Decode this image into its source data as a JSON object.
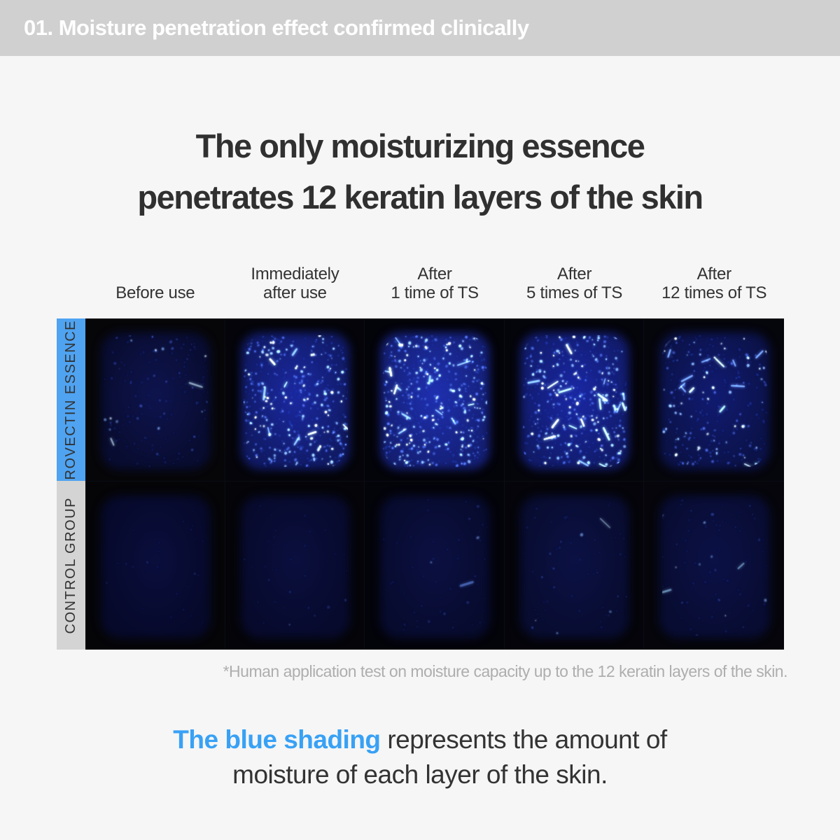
{
  "colors": {
    "page_bg": "#f6f6f6",
    "topbar_bg": "#d0d0d0",
    "topbar_text": "#ffffff",
    "headline_text": "#303030",
    "rovectin_strip": "#4fa3f1",
    "control_strip": "#d4d4d4",
    "highlight_blue": "#38a1f5",
    "footnote_gray": "#aeaeae"
  },
  "topbar": {
    "label": "01. Moisture penetration effect confirmed clinically"
  },
  "headline": {
    "line1": "The only moisturizing essence",
    "line2": "penetrates 12 keratin layers of the skin"
  },
  "table": {
    "column_headers": [
      {
        "line1": "",
        "line2": "Before use"
      },
      {
        "line1": "Immediately",
        "line2": "after use"
      },
      {
        "line1": "After",
        "line2": "1 time of TS"
      },
      {
        "line1": "After",
        "line2": "5 times of TS"
      },
      {
        "line1": "After",
        "line2": "12 times of TS"
      }
    ],
    "row_labels": [
      {
        "label": "ROVECTIN ESSENCE"
      },
      {
        "label": "CONTROL GROUP"
      }
    ],
    "cells": [
      {
        "row": "rovectin-essence",
        "col": "before-use",
        "seed": 11,
        "bg": "#060609",
        "blob": {
          "inner": "#0e144e",
          "outer": "#080c30"
        },
        "speckles": {
          "faint": 130,
          "mid": 30,
          "bright": 8,
          "white": 3,
          "streaks": 2
        },
        "glow": 0.5
      },
      {
        "row": "rovectin-essence",
        "col": "immediately-after-use",
        "seed": 22,
        "bg": "#04040a",
        "blob": {
          "inner": "#1b29a2",
          "outer": "#101a64"
        },
        "speckles": {
          "faint": 240,
          "mid": 160,
          "bright": 90,
          "white": 45,
          "streaks": 10
        },
        "glow": 1.0
      },
      {
        "row": "rovectin-essence",
        "col": "after-1-time",
        "seed": 33,
        "bg": "#03030a",
        "blob": {
          "inner": "#1f30b2",
          "outer": "#141f74"
        },
        "speckles": {
          "faint": 260,
          "mid": 180,
          "bright": 110,
          "white": 55,
          "streaks": 12
        },
        "glow": 1.1
      },
      {
        "row": "rovectin-essence",
        "col": "after-5-times",
        "seed": 44,
        "bg": "#04040b",
        "blob": {
          "inner": "#1a28a6",
          "outer": "#111b6a"
        },
        "speckles": {
          "faint": 230,
          "mid": 150,
          "bright": 95,
          "white": 48,
          "streaks": 18
        },
        "glow": 1.0
      },
      {
        "row": "rovectin-essence",
        "col": "after-12-times",
        "seed": 55,
        "bg": "#05050c",
        "blob": {
          "inner": "#111b72",
          "outer": "#0b1248"
        },
        "speckles": {
          "faint": 170,
          "mid": 70,
          "bright": 35,
          "white": 20,
          "streaks": 14
        },
        "glow": 0.85
      },
      {
        "row": "control-group",
        "col": "before-use",
        "seed": 66,
        "bg": "#050508",
        "blob": {
          "inner": "#0a0e3c",
          "outer": "#06092a"
        },
        "speckles": {
          "faint": 30,
          "mid": 4,
          "bright": 0,
          "white": 0,
          "streaks": 0
        },
        "glow": 0.35
      },
      {
        "row": "control-group",
        "col": "immediately-after-use",
        "seed": 77,
        "bg": "#040409",
        "blob": {
          "inner": "#0a0f3e",
          "outer": "#070a2c"
        },
        "speckles": {
          "faint": 40,
          "mid": 6,
          "bright": 1,
          "white": 0,
          "streaks": 0
        },
        "glow": 0.35
      },
      {
        "row": "control-group",
        "col": "after-1-time",
        "seed": 88,
        "bg": "#03030a",
        "blob": {
          "inner": "#0b1042",
          "outer": "#070b2e"
        },
        "speckles": {
          "faint": 55,
          "mid": 9,
          "bright": 2,
          "white": 0,
          "streaks": 1
        },
        "glow": 0.4
      },
      {
        "row": "control-group",
        "col": "after-5-times",
        "seed": 99,
        "bg": "#04040a",
        "blob": {
          "inner": "#0b1144",
          "outer": "#080c30"
        },
        "speckles": {
          "faint": 60,
          "mid": 11,
          "bright": 3,
          "white": 1,
          "streaks": 1
        },
        "glow": 0.4
      },
      {
        "row": "control-group",
        "col": "after-12-times",
        "seed": 111,
        "bg": "#05050b",
        "blob": {
          "inner": "#0b1146",
          "outer": "#080c32"
        },
        "speckles": {
          "faint": 65,
          "mid": 14,
          "bright": 4,
          "white": 2,
          "streaks": 3
        },
        "glow": 0.45
      }
    ]
  },
  "footnote": "*Human application test on moisture capacity up to the 12 keratin layers of the skin.",
  "caption": {
    "highlight": "The blue shading",
    "rest_line1": " represents the amount of",
    "line2": "moisture of each layer of the skin."
  }
}
